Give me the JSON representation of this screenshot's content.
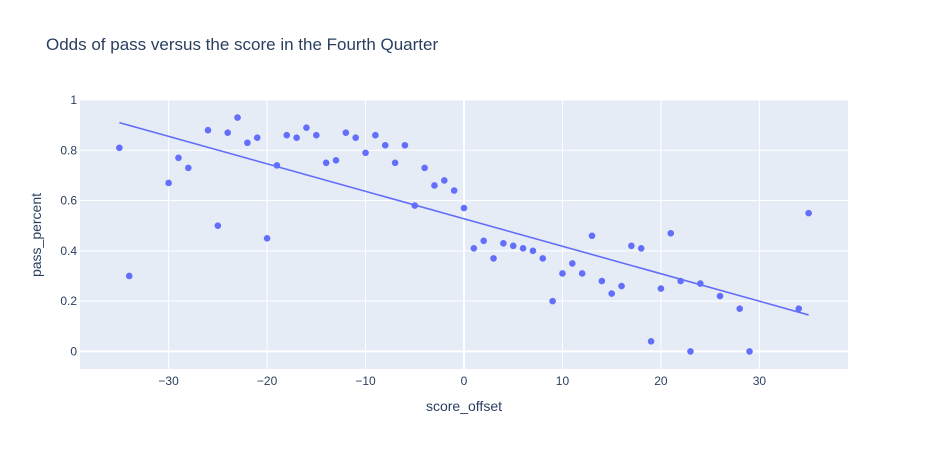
{
  "chart_data": {
    "type": "scatter",
    "title": "Odds of pass versus the score in the Fourth Quarter",
    "xlabel": "score_offset",
    "ylabel": "pass_percent",
    "xlim": [
      -39,
      39
    ],
    "ylim": [
      -0.07,
      1.0
    ],
    "xticks": [
      -30,
      -20,
      -10,
      0,
      10,
      20,
      30
    ],
    "xtick_labels": [
      "−30",
      "−20",
      "−10",
      "0",
      "10",
      "20",
      "30"
    ],
    "yticks": [
      0,
      0.2,
      0.4,
      0.6,
      0.8,
      1
    ],
    "ytick_labels": [
      "0",
      "0.2",
      "0.4",
      "0.6",
      "0.8",
      "1"
    ],
    "grid": true,
    "colors": {
      "marker": "#636efa",
      "line": "#636efa",
      "plot_bg": "#e5ecf6",
      "grid": "#ffffff",
      "text": "#2a3f5f"
    },
    "points": [
      [
        -35,
        0.81
      ],
      [
        -34,
        0.3
      ],
      [
        -30,
        0.67
      ],
      [
        -29,
        0.77
      ],
      [
        -28,
        0.73
      ],
      [
        -26,
        0.88
      ],
      [
        -25,
        0.5
      ],
      [
        -24,
        0.87
      ],
      [
        -23,
        0.93
      ],
      [
        -22,
        0.83
      ],
      [
        -21,
        0.85
      ],
      [
        -20,
        0.45
      ],
      [
        -19,
        0.74
      ],
      [
        -18,
        0.86
      ],
      [
        -17,
        0.85
      ],
      [
        -16,
        0.89
      ],
      [
        -15,
        0.86
      ],
      [
        -14,
        0.75
      ],
      [
        -13,
        0.76
      ],
      [
        -12,
        0.87
      ],
      [
        -11,
        0.85
      ],
      [
        -10,
        0.79
      ],
      [
        -9,
        0.86
      ],
      [
        -8,
        0.82
      ],
      [
        -7,
        0.75
      ],
      [
        -6,
        0.82
      ],
      [
        -5,
        0.58
      ],
      [
        -4,
        0.73
      ],
      [
        -3,
        0.66
      ],
      [
        -2,
        0.68
      ],
      [
        -1,
        0.64
      ],
      [
        0,
        0.57
      ],
      [
        1,
        0.41
      ],
      [
        2,
        0.44
      ],
      [
        3,
        0.37
      ],
      [
        4,
        0.43
      ],
      [
        5,
        0.42
      ],
      [
        6,
        0.41
      ],
      [
        7,
        0.4
      ],
      [
        8,
        0.37
      ],
      [
        9,
        0.2
      ],
      [
        10,
        0.31
      ],
      [
        11,
        0.35
      ],
      [
        12,
        0.31
      ],
      [
        13,
        0.46
      ],
      [
        14,
        0.28
      ],
      [
        15,
        0.23
      ],
      [
        16,
        0.26
      ],
      [
        17,
        0.42
      ],
      [
        18,
        0.41
      ],
      [
        19,
        0.04
      ],
      [
        20,
        0.25
      ],
      [
        21,
        0.47
      ],
      [
        22,
        0.28
      ],
      [
        23,
        0.0
      ],
      [
        24,
        0.27
      ],
      [
        26,
        0.22
      ],
      [
        28,
        0.17
      ],
      [
        29,
        0.0
      ],
      [
        34,
        0.17
      ],
      [
        35,
        0.55
      ]
    ],
    "trendline": {
      "x": [
        -35,
        35
      ],
      "y": [
        0.91,
        0.145
      ]
    }
  }
}
